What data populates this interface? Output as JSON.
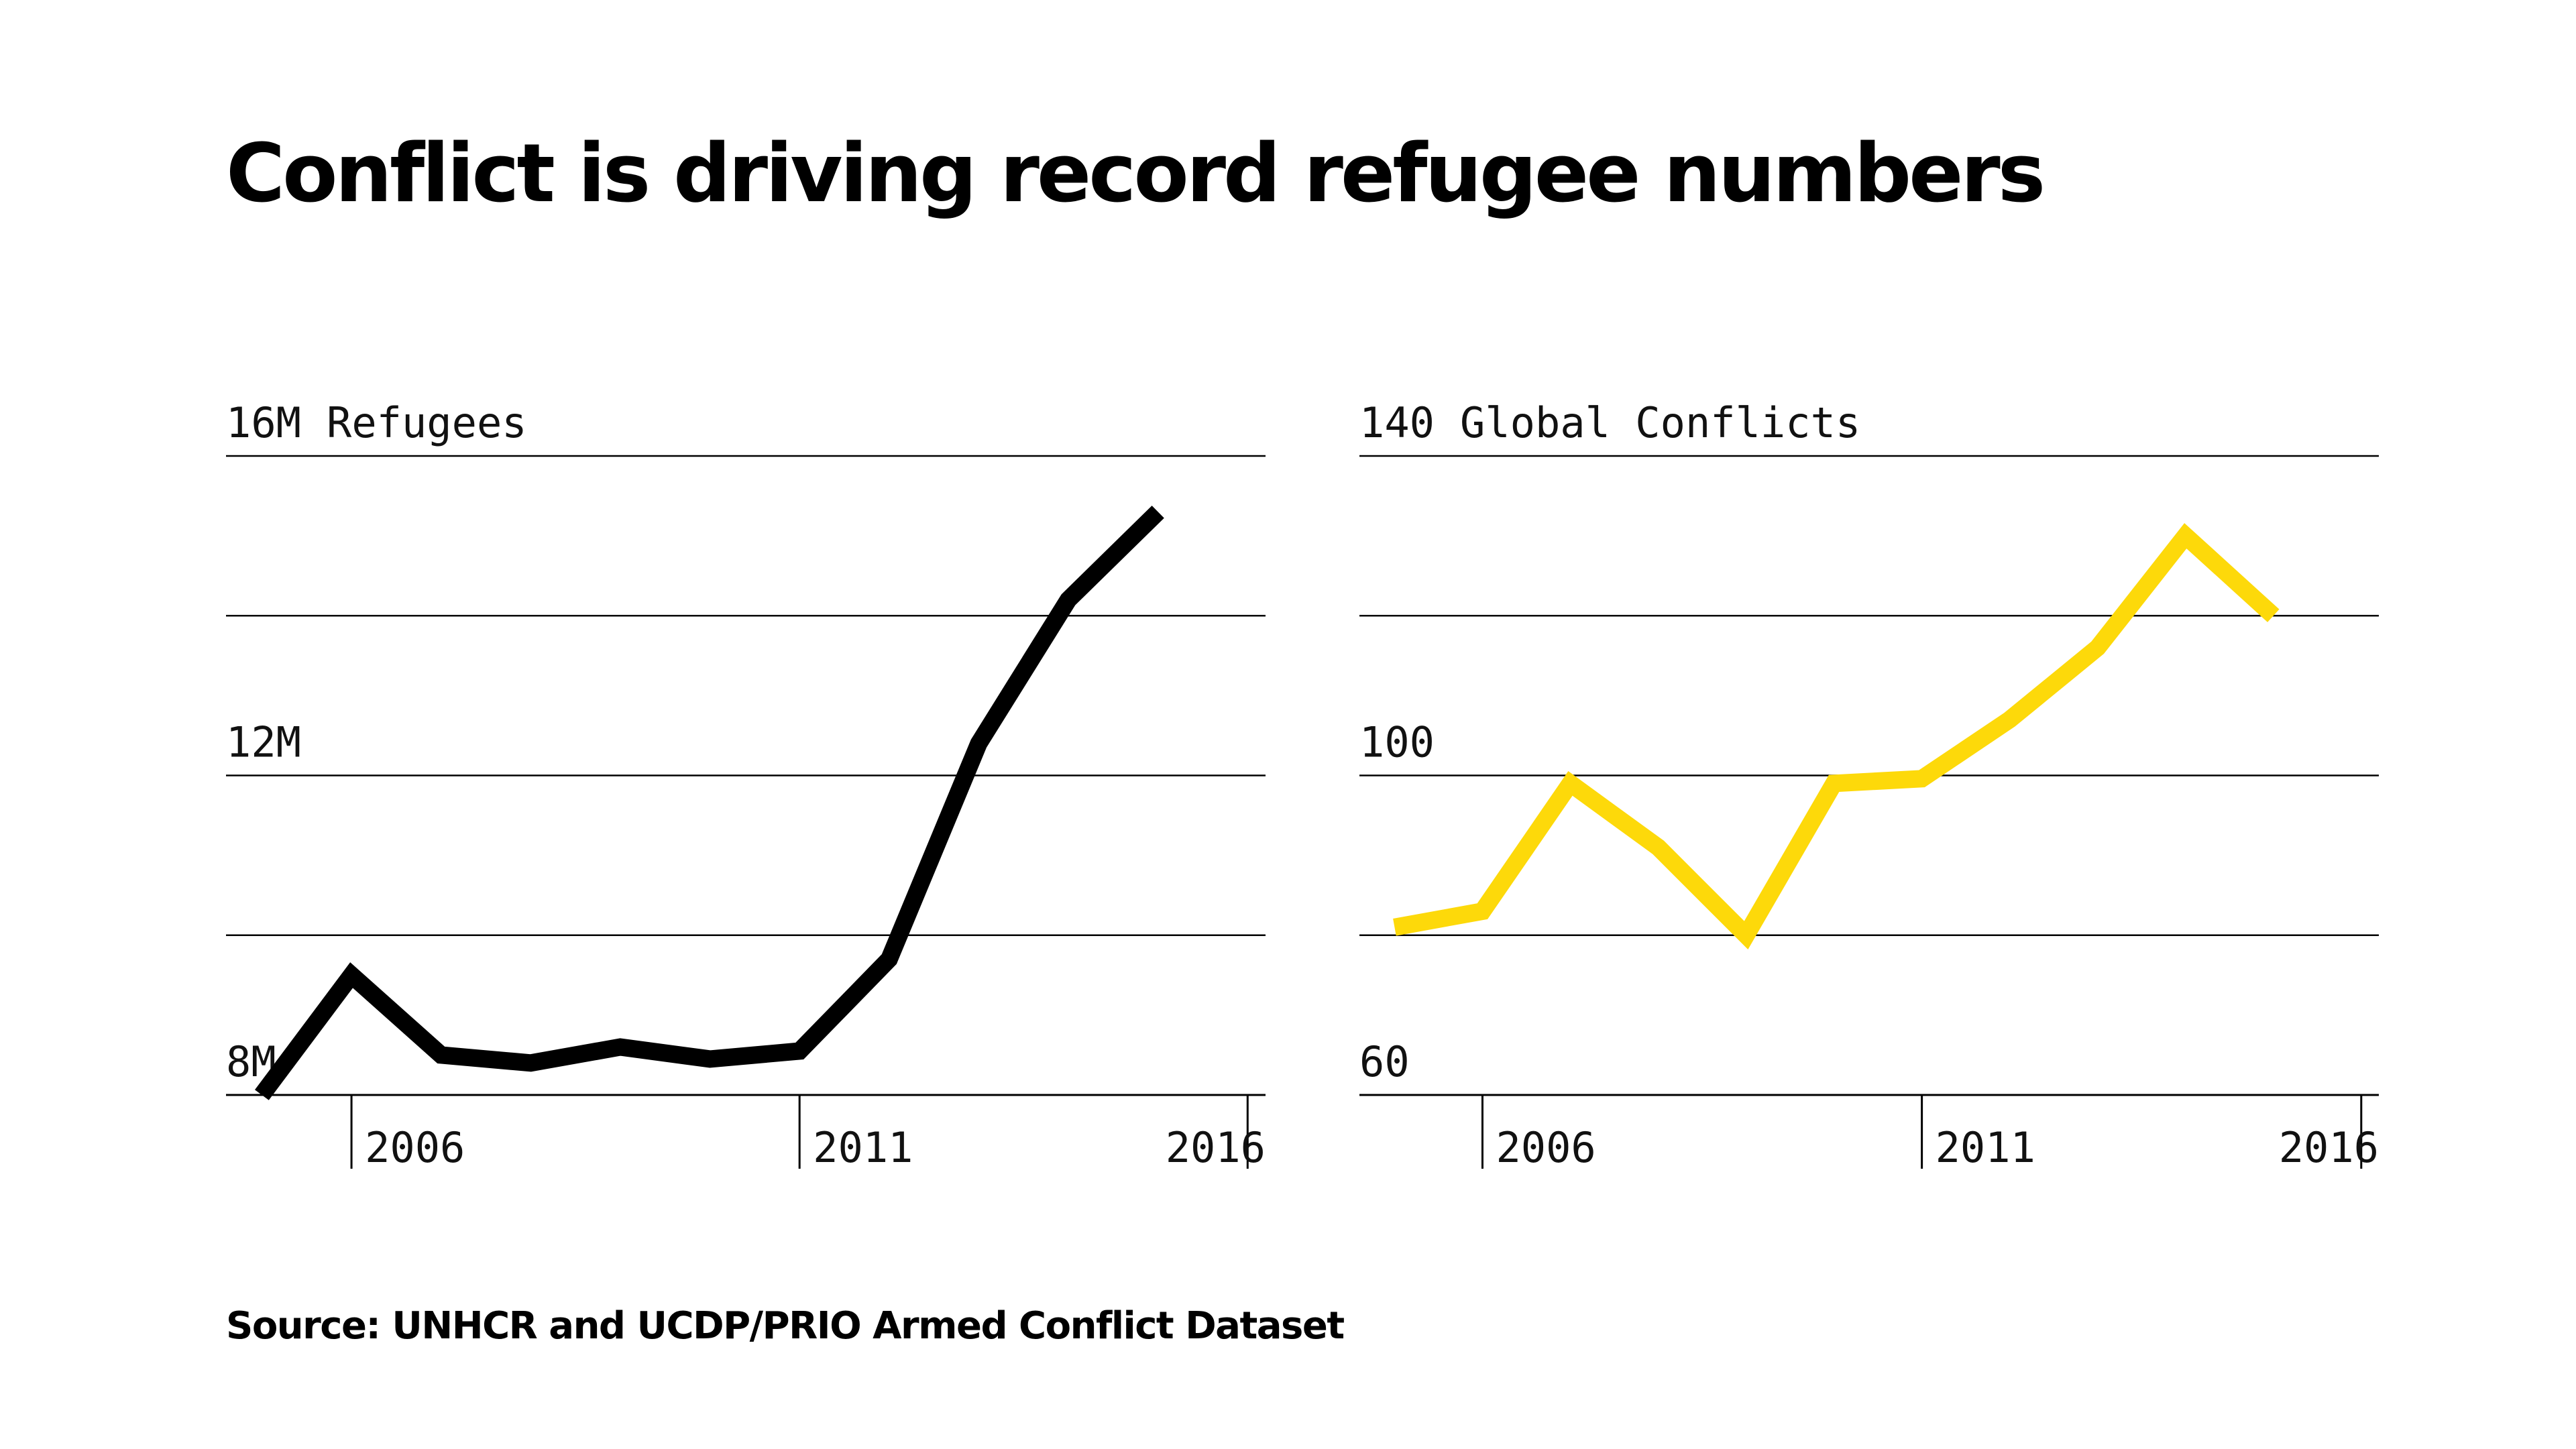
{
  "title": "Conflict is driving record refugee numbers",
  "source": "Source: UNHCR and UCDP/PRIO Armed Conflict Dataset",
  "colors": {
    "refugees": "#000000",
    "conflicts": "#FDD90A",
    "grid": "#000000"
  },
  "chart_data": [
    {
      "type": "line",
      "title": "",
      "series_label": "Refugees",
      "x": [
        2005,
        2006,
        2007,
        2008,
        2009,
        2010,
        2011,
        2012,
        2013,
        2014,
        2015
      ],
      "values": [
        8.0,
        9.5,
        8.5,
        8.4,
        8.6,
        8.45,
        8.55,
        9.7,
        12.4,
        14.2,
        15.3
      ],
      "ylim": [
        8,
        16
      ],
      "ygrid": [
        8,
        10,
        12,
        14,
        16
      ],
      "ytick_labels": [
        {
          "value": 16,
          "label": "16M"
        },
        {
          "value": 12,
          "label": "12M"
        },
        {
          "value": 8,
          "label": "8M"
        }
      ],
      "xlim": [
        2004.6,
        2016.2
      ],
      "xticks": [
        2006,
        2011,
        2016
      ],
      "xtick_labels": [
        "2006",
        "2011",
        "2016"
      ]
    },
    {
      "type": "line",
      "title": "",
      "series_label": "Global Conflicts",
      "x": [
        2005,
        2006,
        2007,
        2008,
        2009,
        2010,
        2011,
        2012,
        2013,
        2014,
        2015
      ],
      "values": [
        81,
        83,
        99,
        91,
        80,
        99,
        99.6,
        107,
        116,
        130,
        120
      ],
      "ylim": [
        60,
        140
      ],
      "ygrid": [
        60,
        80,
        100,
        120,
        140
      ],
      "ytick_labels": [
        {
          "value": 140,
          "label": "140"
        },
        {
          "value": 100,
          "label": "100"
        },
        {
          "value": 60,
          "label": "60"
        }
      ],
      "xlim": [
        2004.6,
        2016.2
      ],
      "xticks": [
        2006,
        2011,
        2016
      ],
      "xtick_labels": [
        "2006",
        "2011",
        "2016"
      ]
    }
  ]
}
